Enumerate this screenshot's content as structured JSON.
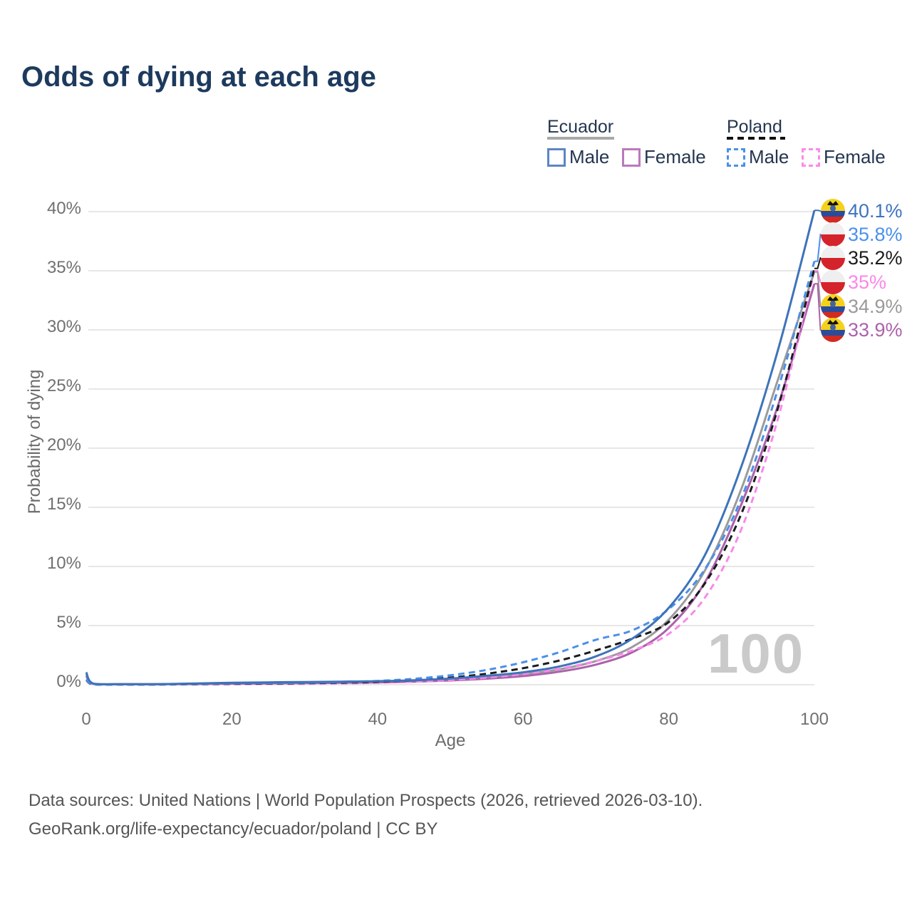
{
  "title": "Odds of dying at each age",
  "legend": {
    "ecuador": {
      "title": "Ecuador",
      "male": "Male",
      "female": "Female"
    },
    "poland": {
      "title": "Poland",
      "male": "Male",
      "female": "Female"
    }
  },
  "axes": {
    "y_title": "Probability of dying",
    "x_title": "Age",
    "y_tick_labels": [
      "0%",
      "5%",
      "10%",
      "15%",
      "20%",
      "25%",
      "30%",
      "35%",
      "40%"
    ],
    "x_tick_labels": [
      "0",
      "20",
      "40",
      "60",
      "80",
      "100"
    ]
  },
  "watermark": "100",
  "footer": {
    "line1": "Data sources: United Nations | World Population Prospects (2026, retrieved 2026-03-10).",
    "line2": "GeoRank.org/life-expectancy/ecuador/poland | CC BY"
  },
  "colors": {
    "title": "#1d3a5e",
    "grid": "#e7e7e7",
    "axis_text": "#707070",
    "watermark": "#cacaca",
    "legend_text": "#24364f",
    "ecuador_underline": "#a9a9a9",
    "poland_underline": "#111111"
  },
  "chart_data": {
    "type": "line",
    "title": "Odds of dying at each age",
    "xlabel": "Age",
    "ylabel": "Probability of dying",
    "xlim": [
      0,
      100
    ],
    "ylim_percent": [
      0,
      42
    ],
    "grid": "horizontal",
    "legend_position": "top-right",
    "y_tick_percent": [
      0,
      5,
      10,
      15,
      20,
      25,
      30,
      35,
      40
    ],
    "x_ticks": [
      0,
      20,
      40,
      60,
      80,
      100
    ],
    "ages": [
      0,
      1,
      5,
      10,
      15,
      20,
      25,
      30,
      35,
      40,
      45,
      50,
      55,
      60,
      65,
      70,
      75,
      80,
      85,
      90,
      95,
      100
    ],
    "series": [
      {
        "name": "Ecuador Male",
        "flag": "ecuador",
        "style": "solid",
        "color": "#3e73ba",
        "label_color": "#3e73c0",
        "end_label": "40.1%",
        "values_pct": [
          1.05,
          0.09,
          0.05,
          0.05,
          0.1,
          0.16,
          0.2,
          0.23,
          0.26,
          0.3,
          0.38,
          0.52,
          0.75,
          1.05,
          1.55,
          2.4,
          3.9,
          6.5,
          11.0,
          18.5,
          28.3,
          40.1
        ]
      },
      {
        "name": "Poland Male",
        "flag": "poland",
        "style": "dashed",
        "color": "#4a90e8",
        "label_color": "#4a90ee",
        "end_label": "35.8%",
        "values_pct": [
          0.45,
          0.04,
          0.02,
          0.03,
          0.07,
          0.11,
          0.14,
          0.17,
          0.22,
          0.32,
          0.5,
          0.8,
          1.25,
          1.9,
          2.75,
          3.8,
          4.6,
          6.4,
          9.8,
          15.8,
          25.0,
          35.8
        ]
      },
      {
        "name": "Poland Both sexes",
        "flag": "poland",
        "style": "dashed",
        "color": "#1b1b1b",
        "label_color": "#1b1b1b",
        "end_label": "35.2%",
        "values_pct": [
          0.42,
          0.03,
          0.02,
          0.02,
          0.05,
          0.08,
          0.1,
          0.13,
          0.17,
          0.24,
          0.37,
          0.6,
          0.93,
          1.4,
          2.05,
          2.9,
          3.9,
          5.3,
          8.6,
          14.5,
          23.4,
          35.2
        ]
      },
      {
        "name": "Poland Female",
        "flag": "poland",
        "style": "dashed",
        "color": "#f889ea",
        "label_color": "#fb87ea",
        "end_label": "35%",
        "values_pct": [
          0.38,
          0.03,
          0.01,
          0.02,
          0.03,
          0.04,
          0.06,
          0.08,
          0.11,
          0.16,
          0.25,
          0.4,
          0.6,
          0.9,
          1.35,
          2.0,
          2.9,
          4.3,
          7.4,
          13.2,
          22.5,
          35.0
        ]
      },
      {
        "name": "Ecuador Both sexes",
        "flag": "ecuador",
        "style": "solid",
        "color": "#9b9b9b",
        "label_color": "#9a9a9a",
        "end_label": "34.9%",
        "values_pct": [
          0.9,
          0.08,
          0.04,
          0.04,
          0.08,
          0.12,
          0.15,
          0.18,
          0.21,
          0.25,
          0.32,
          0.43,
          0.62,
          0.88,
          1.3,
          2.0,
          3.2,
          5.5,
          9.7,
          16.6,
          25.8,
          34.9
        ]
      },
      {
        "name": "Ecuador Female",
        "flag": "ecuador",
        "style": "solid",
        "color": "#ac62ab",
        "label_color": "#ac62ab",
        "end_label": "33.9%",
        "values_pct": [
          0.75,
          0.07,
          0.04,
          0.04,
          0.06,
          0.09,
          0.11,
          0.13,
          0.16,
          0.2,
          0.26,
          0.36,
          0.51,
          0.73,
          1.1,
          1.7,
          2.75,
          4.8,
          8.7,
          15.3,
          23.6,
          33.9
        ]
      }
    ]
  }
}
